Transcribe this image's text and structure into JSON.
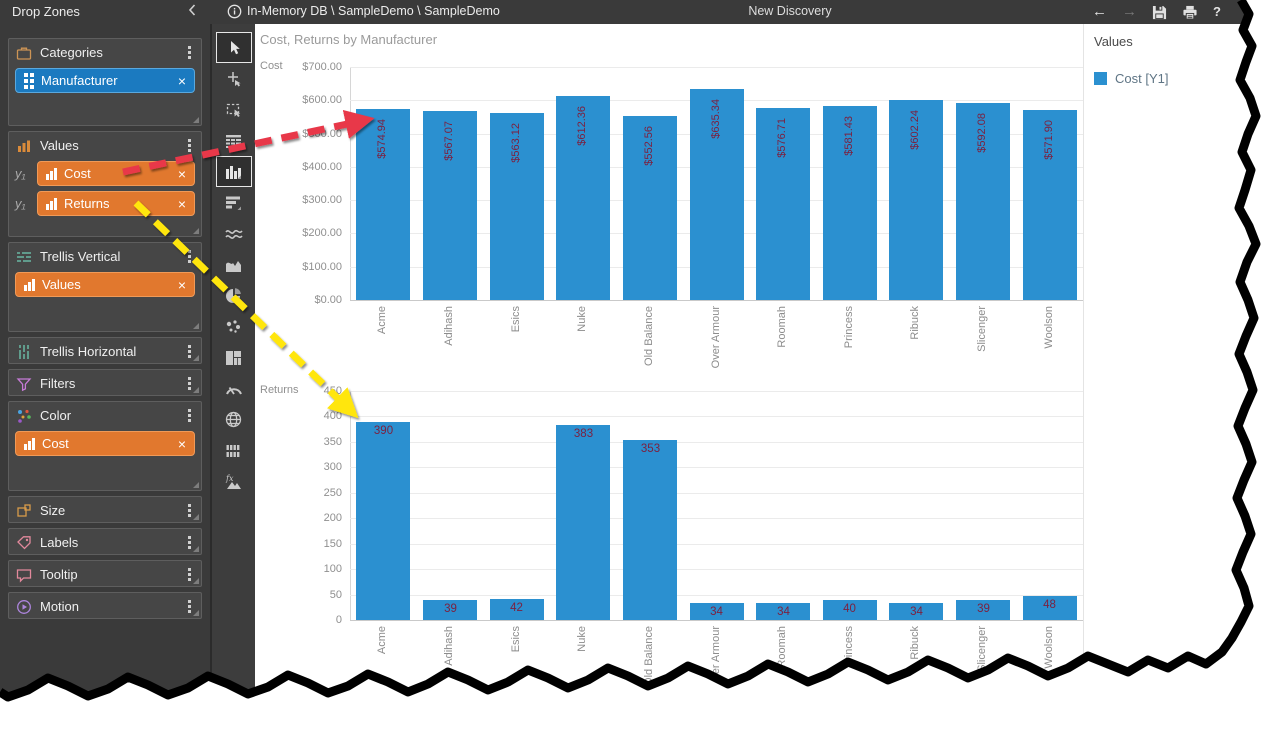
{
  "title_bar": {
    "breadcrumb": "In-Memory DB \\ SampleDemo \\ SampleDemo",
    "title": "New Discovery",
    "back_label": "←",
    "forward_label": "→",
    "help_label": "?"
  },
  "sidebar": {
    "header": "Drop Zones",
    "zones": [
      {
        "title": "Categories",
        "chips": [
          {
            "label": "Manufacturer",
            "color": "blue"
          }
        ]
      },
      {
        "title": "Values",
        "chips": [
          {
            "prefix": "y₁",
            "label": "Cost",
            "color": "orange"
          },
          {
            "prefix": "y₁",
            "label": "Returns",
            "color": "orange"
          }
        ]
      },
      {
        "title": "Trellis Vertical",
        "chips": [
          {
            "label": "Values",
            "color": "orange"
          }
        ]
      },
      {
        "title": "Trellis Horizontal",
        "chips": []
      },
      {
        "title": "Filters",
        "chips": []
      },
      {
        "title": "Color",
        "chips": [
          {
            "label": "Cost",
            "color": "orange"
          }
        ]
      },
      {
        "title": "Size",
        "chips": []
      },
      {
        "title": "Labels",
        "chips": []
      },
      {
        "title": "Tooltip",
        "chips": []
      },
      {
        "title": "Motion",
        "chips": []
      }
    ],
    "remove_label": "×"
  },
  "toolbar": {
    "items": [
      "pointer",
      "add-pointer",
      "marquee-select",
      "grid-view",
      "column-chart",
      "bar-chart",
      "line-chart",
      "area-chart",
      "pie-chart",
      "scatter-chart",
      "treemap-chart",
      "gauge-chart",
      "map-chart",
      "small-multiples",
      "custom-fx"
    ],
    "selected": [
      "pointer",
      "column-chart"
    ]
  },
  "main": {
    "chart_title": "Cost, Returns by Manufacturer"
  },
  "legend": {
    "header": "Values",
    "items": [
      {
        "label": "Cost [Y1]",
        "color": "#2b90d0"
      }
    ]
  },
  "annotations": [
    {
      "type": "arrow",
      "color": "#e8374a",
      "from": "cost-field-chip",
      "to": "acme-cost-bar"
    },
    {
      "type": "arrow",
      "color": "#ffe60a",
      "from": "returns-field-chip",
      "to": "acme-returns-bar"
    }
  ],
  "chart_data": [
    {
      "type": "bar",
      "name": "Cost",
      "axis_label": "Cost",
      "categories": [
        "Acme",
        "Adihash",
        "Esics",
        "Nuke",
        "Old Balance",
        "Over Armour",
        "Roomah",
        "Princess",
        "Ribuck",
        "Slicenger",
        "Woolson"
      ],
      "values": [
        574.94,
        567.07,
        563.12,
        612.36,
        552.56,
        635.34,
        576.71,
        581.43,
        602.24,
        592.08,
        571.9
      ],
      "bar_labels": [
        "$574.94",
        "$567.07",
        "$563.12",
        "$612.36",
        "$552.56",
        "$635.34",
        "$576.71",
        "$581.43",
        "$602.24",
        "$592.08",
        "$571.90"
      ],
      "label_orientation": "vertical",
      "y_ticks": [
        "$700.00",
        "$600.00",
        "$500.00",
        "$400.00",
        "$300.00",
        "$200.00",
        "$100.00",
        "$0.00"
      ],
      "ylim": [
        0,
        700
      ],
      "grid": true,
      "legend_position": "right",
      "bar_color": "#2b90d0"
    },
    {
      "type": "bar",
      "name": "Returns",
      "axis_label": "Returns",
      "categories": [
        "Acme",
        "Adihash",
        "Esics",
        "Nuke",
        "Old Balance",
        "Over Armour",
        "Roomah",
        "Princess",
        "Ribuck",
        "Slicenger",
        "Woolson"
      ],
      "values": [
        390,
        39,
        42,
        383,
        353,
        34,
        34,
        40,
        34,
        39,
        48
      ],
      "bar_labels": [
        "390",
        "39",
        "42",
        "383",
        "353",
        "34",
        "34",
        "40",
        "34",
        "39",
        "48"
      ],
      "label_orientation": "horizontal",
      "y_ticks": [
        "450",
        "400",
        "350",
        "300",
        "250",
        "200",
        "150",
        "100",
        "50",
        "0"
      ],
      "ylim": [
        0,
        450
      ],
      "grid": true,
      "bar_color": "#2b90d0"
    }
  ]
}
